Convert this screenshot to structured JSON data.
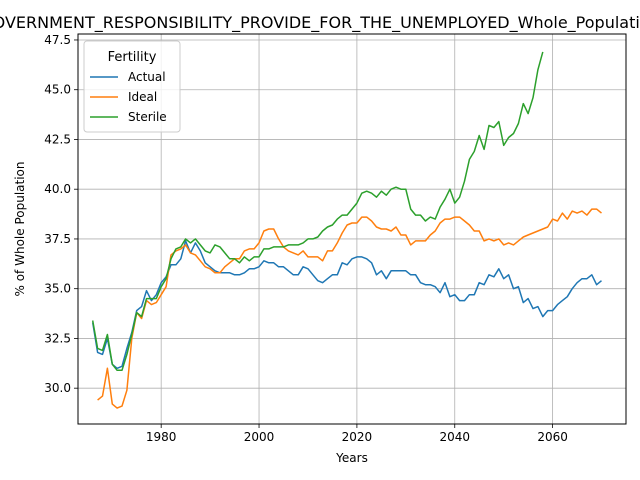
{
  "chart_data": {
    "type": "line",
    "title": "GOVERNMENT_RESPONSIBILITY_PROVIDE_FOR_THE_UNEMPLOYED_Whole_Population",
    "xlabel": "Years",
    "ylabel": "% of Whole Population",
    "xlim": [
      1963,
      2075
    ],
    "ylim": [
      28.2,
      47.8
    ],
    "x_ticks": [
      1980,
      2000,
      2020,
      2040,
      2060
    ],
    "y_ticks": [
      30.0,
      32.5,
      35.0,
      37.5,
      40.0,
      42.5,
      45.0,
      47.5
    ],
    "grid": true,
    "legend": {
      "title": "Fertility",
      "position": "top-left",
      "entries": [
        "Actual",
        "Ideal",
        "Sterile"
      ]
    },
    "series": [
      {
        "name": "Actual",
        "color": "#1f77b4",
        "points": [
          [
            1966,
            33.3
          ],
          [
            1967,
            31.8
          ],
          [
            1968,
            31.7
          ],
          [
            1969,
            32.5
          ],
          [
            1970,
            31.2
          ],
          [
            1971,
            31.0
          ],
          [
            1972,
            31.1
          ],
          [
            1973,
            32.0
          ],
          [
            1974,
            32.8
          ],
          [
            1975,
            33.9
          ],
          [
            1976,
            34.1
          ],
          [
            1977,
            34.9
          ],
          [
            1978,
            34.4
          ],
          [
            1979,
            34.7
          ],
          [
            1980,
            35.3
          ],
          [
            1981,
            35.6
          ],
          [
            1982,
            36.2
          ],
          [
            1983,
            36.2
          ],
          [
            1984,
            36.5
          ],
          [
            1985,
            37.4
          ],
          [
            1986,
            36.8
          ],
          [
            1987,
            37.3
          ],
          [
            1988,
            36.9
          ],
          [
            1989,
            36.3
          ],
          [
            1990,
            36.1
          ],
          [
            1991,
            35.9
          ],
          [
            1992,
            35.8
          ],
          [
            1993,
            35.8
          ],
          [
            1994,
            35.8
          ],
          [
            1995,
            35.7
          ],
          [
            1996,
            35.7
          ],
          [
            1997,
            35.8
          ],
          [
            1998,
            36.0
          ],
          [
            1999,
            36.0
          ],
          [
            2000,
            36.1
          ],
          [
            2001,
            36.4
          ],
          [
            2002,
            36.3
          ],
          [
            2003,
            36.3
          ],
          [
            2004,
            36.1
          ],
          [
            2005,
            36.1
          ],
          [
            2006,
            35.9
          ],
          [
            2007,
            35.7
          ],
          [
            2008,
            35.7
          ],
          [
            2009,
            36.1
          ],
          [
            2010,
            36.0
          ],
          [
            2011,
            35.7
          ],
          [
            2012,
            35.4
          ],
          [
            2013,
            35.3
          ],
          [
            2014,
            35.5
          ],
          [
            2015,
            35.7
          ],
          [
            2016,
            35.7
          ],
          [
            2017,
            36.3
          ],
          [
            2018,
            36.2
          ],
          [
            2019,
            36.5
          ],
          [
            2020,
            36.6
          ],
          [
            2021,
            36.6
          ],
          [
            2022,
            36.5
          ],
          [
            2023,
            36.3
          ],
          [
            2024,
            35.7
          ],
          [
            2025,
            35.9
          ],
          [
            2026,
            35.5
          ],
          [
            2027,
            35.9
          ],
          [
            2028,
            35.9
          ],
          [
            2029,
            35.9
          ],
          [
            2030,
            35.9
          ],
          [
            2031,
            35.7
          ],
          [
            2032,
            35.7
          ],
          [
            2033,
            35.3
          ],
          [
            2034,
            35.2
          ],
          [
            2035,
            35.2
          ],
          [
            2036,
            35.1
          ],
          [
            2037,
            34.8
          ],
          [
            2038,
            35.3
          ],
          [
            2039,
            34.6
          ],
          [
            2040,
            34.7
          ],
          [
            2041,
            34.4
          ],
          [
            2042,
            34.4
          ],
          [
            2043,
            34.7
          ],
          [
            2044,
            34.7
          ],
          [
            2045,
            35.3
          ],
          [
            2046,
            35.2
          ],
          [
            2047,
            35.7
          ],
          [
            2048,
            35.6
          ],
          [
            2049,
            36.0
          ],
          [
            2050,
            35.5
          ],
          [
            2051,
            35.7
          ],
          [
            2052,
            35.0
          ],
          [
            2053,
            35.1
          ],
          [
            2054,
            34.3
          ],
          [
            2055,
            34.5
          ],
          [
            2056,
            34.0
          ],
          [
            2057,
            34.1
          ],
          [
            2058,
            33.6
          ],
          [
            2059,
            33.9
          ],
          [
            2060,
            33.9
          ],
          [
            2061,
            34.2
          ],
          [
            2062,
            34.4
          ],
          [
            2063,
            34.6
          ],
          [
            2064,
            35.0
          ],
          [
            2065,
            35.3
          ],
          [
            2066,
            35.5
          ],
          [
            2067,
            35.5
          ],
          [
            2068,
            35.7
          ],
          [
            2069,
            35.2
          ],
          [
            2070,
            35.4
          ]
        ]
      },
      {
        "name": "Ideal",
        "color": "#ff7f0e",
        "points": [
          [
            1967,
            29.4
          ],
          [
            1968,
            29.6
          ],
          [
            1969,
            31.0
          ],
          [
            1970,
            29.2
          ],
          [
            1971,
            29.0
          ],
          [
            1972,
            29.1
          ],
          [
            1973,
            29.9
          ],
          [
            1974,
            32.5
          ],
          [
            1975,
            33.8
          ],
          [
            1976,
            33.5
          ],
          [
            1977,
            34.4
          ],
          [
            1978,
            34.2
          ],
          [
            1979,
            34.3
          ],
          [
            1980,
            34.7
          ],
          [
            1981,
            35.1
          ],
          [
            1982,
            36.7
          ],
          [
            1983,
            36.9
          ],
          [
            1984,
            37.0
          ],
          [
            1985,
            37.2
          ],
          [
            1986,
            36.8
          ],
          [
            1987,
            36.7
          ],
          [
            1988,
            36.4
          ],
          [
            1989,
            36.1
          ],
          [
            1990,
            36.0
          ],
          [
            1991,
            35.8
          ],
          [
            1992,
            35.8
          ],
          [
            1993,
            36.1
          ],
          [
            1994,
            36.3
          ],
          [
            1995,
            36.5
          ],
          [
            1996,
            36.5
          ],
          [
            1997,
            36.9
          ],
          [
            1998,
            37.0
          ],
          [
            1999,
            37.0
          ],
          [
            2000,
            37.3
          ],
          [
            2001,
            37.9
          ],
          [
            2002,
            38.0
          ],
          [
            2003,
            38.0
          ],
          [
            2004,
            37.5
          ],
          [
            2005,
            37.1
          ],
          [
            2006,
            36.9
          ],
          [
            2007,
            36.8
          ],
          [
            2008,
            36.7
          ],
          [
            2009,
            36.9
          ],
          [
            2010,
            36.6
          ],
          [
            2011,
            36.6
          ],
          [
            2012,
            36.6
          ],
          [
            2013,
            36.4
          ],
          [
            2014,
            36.9
          ],
          [
            2015,
            36.9
          ],
          [
            2016,
            37.3
          ],
          [
            2017,
            37.8
          ],
          [
            2018,
            38.2
          ],
          [
            2019,
            38.3
          ],
          [
            2020,
            38.3
          ],
          [
            2021,
            38.6
          ],
          [
            2022,
            38.6
          ],
          [
            2023,
            38.4
          ],
          [
            2024,
            38.1
          ],
          [
            2025,
            38.0
          ],
          [
            2026,
            38.0
          ],
          [
            2027,
            37.9
          ],
          [
            2028,
            38.1
          ],
          [
            2029,
            37.7
          ],
          [
            2030,
            37.7
          ],
          [
            2031,
            37.2
          ],
          [
            2032,
            37.4
          ],
          [
            2033,
            37.4
          ],
          [
            2034,
            37.4
          ],
          [
            2035,
            37.7
          ],
          [
            2036,
            37.9
          ],
          [
            2037,
            38.3
          ],
          [
            2038,
            38.5
          ],
          [
            2039,
            38.5
          ],
          [
            2040,
            38.6
          ],
          [
            2041,
            38.6
          ],
          [
            2042,
            38.4
          ],
          [
            2043,
            38.2
          ],
          [
            2044,
            37.9
          ],
          [
            2045,
            37.9
          ],
          [
            2046,
            37.4
          ],
          [
            2047,
            37.5
          ],
          [
            2048,
            37.4
          ],
          [
            2049,
            37.5
          ],
          [
            2050,
            37.2
          ],
          [
            2051,
            37.3
          ],
          [
            2052,
            37.2
          ],
          [
            2053,
            37.4
          ],
          [
            2054,
            37.6
          ],
          [
            2055,
            37.7
          ],
          [
            2056,
            37.8
          ],
          [
            2057,
            37.9
          ],
          [
            2058,
            38.0
          ],
          [
            2059,
            38.1
          ],
          [
            2060,
            38.5
          ],
          [
            2061,
            38.4
          ],
          [
            2062,
            38.8
          ],
          [
            2063,
            38.5
          ],
          [
            2064,
            38.9
          ],
          [
            2065,
            38.8
          ],
          [
            2066,
            38.9
          ],
          [
            2067,
            38.7
          ],
          [
            2068,
            39.0
          ],
          [
            2069,
            39.0
          ],
          [
            2070,
            38.8
          ]
        ]
      },
      {
        "name": "Sterile",
        "color": "#2ca02c",
        "points": [
          [
            1966,
            33.4
          ],
          [
            1967,
            32.0
          ],
          [
            1968,
            31.9
          ],
          [
            1969,
            32.7
          ],
          [
            1970,
            31.2
          ],
          [
            1971,
            30.9
          ],
          [
            1972,
            30.9
          ],
          [
            1973,
            31.7
          ],
          [
            1974,
            32.7
          ],
          [
            1975,
            33.8
          ],
          [
            1976,
            33.6
          ],
          [
            1977,
            34.5
          ],
          [
            1978,
            34.5
          ],
          [
            1979,
            34.5
          ],
          [
            1980,
            35.1
          ],
          [
            1981,
            35.5
          ],
          [
            1982,
            36.5
          ],
          [
            1983,
            37.0
          ],
          [
            1984,
            37.1
          ],
          [
            1985,
            37.5
          ],
          [
            1986,
            37.3
          ],
          [
            1987,
            37.5
          ],
          [
            1988,
            37.2
          ],
          [
            1989,
            36.9
          ],
          [
            1990,
            36.8
          ],
          [
            1991,
            37.2
          ],
          [
            1992,
            37.1
          ],
          [
            1993,
            36.8
          ],
          [
            1994,
            36.5
          ],
          [
            1995,
            36.5
          ],
          [
            1996,
            36.3
          ],
          [
            1997,
            36.6
          ],
          [
            1998,
            36.4
          ],
          [
            1999,
            36.6
          ],
          [
            2000,
            36.6
          ],
          [
            2001,
            37.0
          ],
          [
            2002,
            37.0
          ],
          [
            2003,
            37.1
          ],
          [
            2004,
            37.1
          ],
          [
            2005,
            37.1
          ],
          [
            2006,
            37.2
          ],
          [
            2007,
            37.2
          ],
          [
            2008,
            37.2
          ],
          [
            2009,
            37.3
          ],
          [
            2010,
            37.5
          ],
          [
            2011,
            37.5
          ],
          [
            2012,
            37.6
          ],
          [
            2013,
            37.9
          ],
          [
            2014,
            38.1
          ],
          [
            2015,
            38.2
          ],
          [
            2016,
            38.5
          ],
          [
            2017,
            38.7
          ],
          [
            2018,
            38.7
          ],
          [
            2019,
            39.0
          ],
          [
            2020,
            39.3
          ],
          [
            2021,
            39.8
          ],
          [
            2022,
            39.9
          ],
          [
            2023,
            39.8
          ],
          [
            2024,
            39.6
          ],
          [
            2025,
            39.9
          ],
          [
            2026,
            39.7
          ],
          [
            2027,
            40.0
          ],
          [
            2028,
            40.1
          ],
          [
            2029,
            40.0
          ],
          [
            2030,
            40.0
          ],
          [
            2031,
            39.0
          ],
          [
            2032,
            38.7
          ],
          [
            2033,
            38.7
          ],
          [
            2034,
            38.4
          ],
          [
            2035,
            38.6
          ],
          [
            2036,
            38.5
          ],
          [
            2037,
            39.1
          ],
          [
            2038,
            39.5
          ],
          [
            2039,
            40.0
          ],
          [
            2040,
            39.3
          ],
          [
            2041,
            39.6
          ],
          [
            2042,
            40.4
          ],
          [
            2043,
            41.5
          ],
          [
            2044,
            41.9
          ],
          [
            2045,
            42.7
          ],
          [
            2046,
            42.0
          ],
          [
            2047,
            43.2
          ],
          [
            2048,
            43.1
          ],
          [
            2049,
            43.4
          ],
          [
            2050,
            42.2
          ],
          [
            2051,
            42.6
          ],
          [
            2052,
            42.8
          ],
          [
            2053,
            43.3
          ],
          [
            2054,
            44.3
          ],
          [
            2055,
            43.8
          ],
          [
            2056,
            44.6
          ],
          [
            2057,
            46.0
          ],
          [
            2058,
            46.9
          ]
        ]
      }
    ]
  }
}
